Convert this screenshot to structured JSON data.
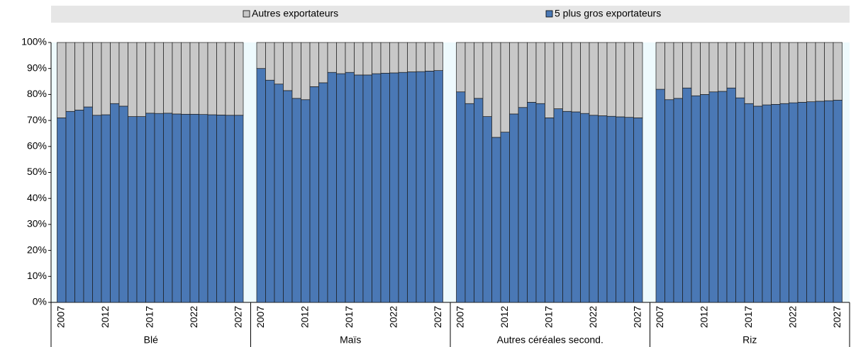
{
  "chart_data": {
    "type": "stacked_bar",
    "ylim": [
      0,
      100
    ],
    "yticks": [
      {
        "value": 0,
        "label": "0%"
      },
      {
        "value": 10,
        "label": "10%"
      },
      {
        "value": 20,
        "label": "20%"
      },
      {
        "value": 30,
        "label": "30%"
      },
      {
        "value": 40,
        "label": "40%"
      },
      {
        "value": 50,
        "label": "50%"
      },
      {
        "value": 60,
        "label": "60%"
      },
      {
        "value": 70,
        "label": "70%"
      },
      {
        "value": 80,
        "label": "80%"
      },
      {
        "value": 90,
        "label": "90%"
      },
      {
        "value": 100,
        "label": "100%"
      }
    ],
    "series": [
      {
        "name": "Autres exportateurs",
        "color": "#c8c8c8"
      },
      {
        "name": "5 plus gros exportateurs",
        "color": "#4a78b5"
      }
    ],
    "groups": [
      {
        "name": "Blé",
        "categories": [
          "2007",
          null,
          null,
          null,
          null,
          "2012",
          null,
          null,
          null,
          null,
          "2017",
          null,
          null,
          null,
          null,
          "2022",
          null,
          null,
          null,
          null,
          "2027"
        ],
        "values": [
          [
            29,
            26.5,
            26,
            24.8,
            28,
            27.8,
            23.5,
            24.5,
            28.5,
            28.5,
            27.2,
            27.3,
            27.2,
            27.5,
            27.6,
            27.6,
            27.7,
            27.8,
            27.9,
            28,
            28
          ],
          [
            71,
            73.5,
            74,
            75.2,
            72,
            72.2,
            76.5,
            75.5,
            71.5,
            71.5,
            72.8,
            72.7,
            72.8,
            72.5,
            72.4,
            72.4,
            72.3,
            72.2,
            72.1,
            72,
            72
          ]
        ]
      },
      {
        "name": "Maïs",
        "categories": [
          "2007",
          null,
          null,
          null,
          null,
          "2012",
          null,
          null,
          null,
          null,
          "2017",
          null,
          null,
          null,
          null,
          "2022",
          null,
          null,
          null,
          null,
          "2027"
        ],
        "values": [
          [
            10,
            14.5,
            16,
            18.5,
            21.5,
            22,
            17,
            15.5,
            11.5,
            12,
            11.5,
            12.5,
            12.5,
            12,
            11.8,
            11.7,
            11.5,
            11.3,
            11.2,
            11,
            10.8
          ],
          [
            90,
            85.5,
            84,
            81.5,
            78.5,
            78,
            83,
            84.5,
            88.5,
            88,
            88.5,
            87.5,
            87.5,
            88,
            88.2,
            88.3,
            88.5,
            88.7,
            88.8,
            89,
            89.2
          ]
        ]
      },
      {
        "name": "Autres céréales second.",
        "categories": [
          "2007",
          null,
          null,
          null,
          null,
          "2012",
          null,
          null,
          null,
          null,
          "2017",
          null,
          null,
          null,
          null,
          "2022",
          null,
          null,
          null,
          null,
          "2027"
        ],
        "values": [
          [
            19,
            23.5,
            21.5,
            28.5,
            36.5,
            34.5,
            27.5,
            25,
            23,
            23.5,
            29,
            25.5,
            26.5,
            26.7,
            27.3,
            28,
            28.2,
            28.4,
            28.6,
            28.8,
            29
          ],
          [
            81,
            76.5,
            78.5,
            71.5,
            63.5,
            65.5,
            72.5,
            75,
            77,
            76.5,
            71,
            74.5,
            73.5,
            73.3,
            72.7,
            72,
            71.8,
            71.6,
            71.4,
            71.2,
            71
          ]
        ]
      },
      {
        "name": "Riz",
        "categories": [
          "2007",
          null,
          null,
          null,
          null,
          "2012",
          null,
          null,
          null,
          null,
          "2017",
          null,
          null,
          null,
          null,
          "2022",
          null,
          null,
          null,
          null,
          "2027"
        ],
        "values": [
          [
            18,
            22,
            21.5,
            17.5,
            20.5,
            20,
            19,
            18.8,
            17.5,
            21.3,
            23.5,
            24.5,
            24,
            23.8,
            23.5,
            23.2,
            23,
            22.8,
            22.6,
            22.4,
            22.2
          ],
          [
            82,
            78,
            78.5,
            82.5,
            79.5,
            80,
            81,
            81.2,
            82.5,
            78.7,
            76.5,
            75.5,
            76,
            76.2,
            76.5,
            76.8,
            77,
            77.2,
            77.4,
            77.6,
            77.8
          ]
        ]
      }
    ]
  }
}
